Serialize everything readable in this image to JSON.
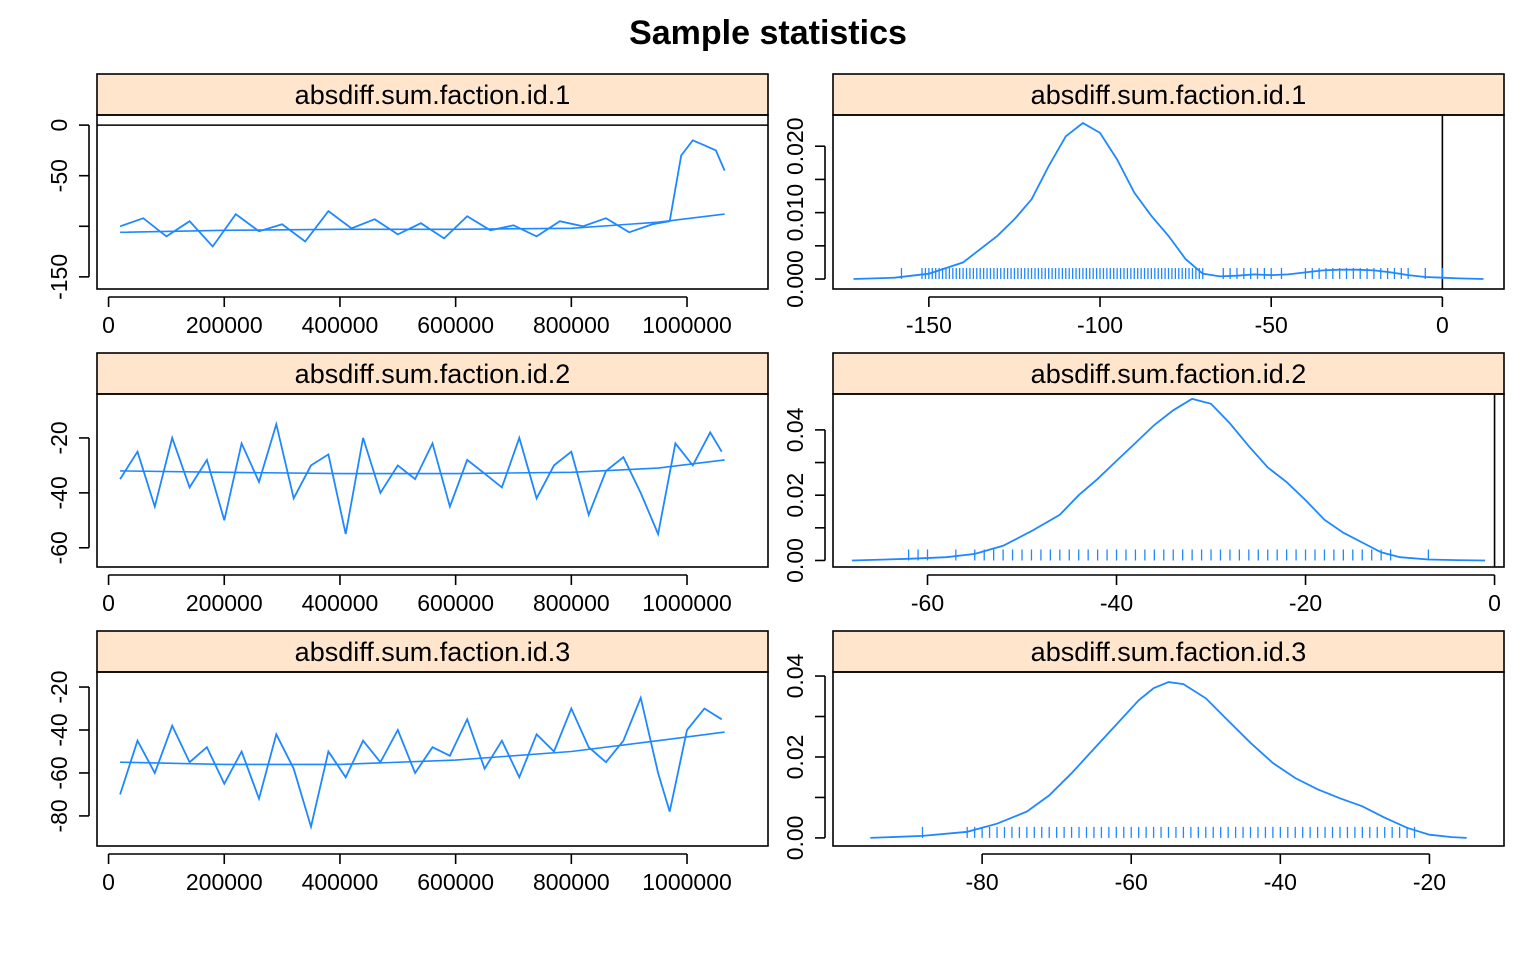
{
  "title": "Sample statistics",
  "colors": {
    "line": "#1e88ff",
    "strip": "#ffe5cc",
    "axis": "#000000"
  },
  "chart_data": [
    {
      "type": "line",
      "panel": "trace",
      "strip_label": "absdiff.sum.faction.id.1",
      "xlim": [
        -20000,
        1140000
      ],
      "ylim": [
        -162,
        10
      ],
      "x_ticks": [
        0,
        200000,
        400000,
        600000,
        800000,
        1000000
      ],
      "y_ticks": [
        0,
        -50,
        -100,
        -150
      ],
      "y_tick_labels": [
        "0",
        "-50",
        "",
        "-150"
      ],
      "reference_y": 0,
      "series": [
        {
          "x": [
            20000,
            60000,
            100000,
            140000,
            180000,
            220000,
            260000,
            300000,
            340000,
            380000,
            420000,
            460000,
            500000,
            540000,
            580000,
            620000,
            660000,
            700000,
            740000,
            780000,
            820000,
            860000,
            900000,
            940000,
            970000,
            990000,
            1010000,
            1030000,
            1050000,
            1065000
          ],
          "y": [
            -100,
            -92,
            -110,
            -95,
            -120,
            -88,
            -105,
            -98,
            -115,
            -85,
            -102,
            -93,
            -108,
            -97,
            -112,
            -90,
            -104,
            -99,
            -110,
            -95,
            -100,
            -92,
            -106,
            -98,
            -95,
            -30,
            -15,
            -20,
            -25,
            -45
          ]
        }
      ],
      "smooth": {
        "x": [
          20000,
          200000,
          400000,
          600000,
          800000,
          950000,
          1065000
        ],
        "y": [
          -106,
          -104,
          -103,
          -103,
          -102,
          -96,
          -88
        ]
      }
    },
    {
      "type": "area",
      "panel": "density",
      "strip_label": "absdiff.sum.faction.id.1",
      "xlim": [
        -178,
        18
      ],
      "ylim": [
        -0.0015,
        0.0247
      ],
      "x_ticks": [
        -150,
        -100,
        -50,
        0
      ],
      "y_ticks": [
        0.0,
        0.005,
        0.01,
        0.015,
        0.02
      ],
      "y_tick_labels": [
        "0.000",
        "",
        "0.010",
        "",
        "0.020"
      ],
      "reference_x": 0,
      "series": [
        {
          "x": [
            -172,
            -160,
            -150,
            -140,
            -130,
            -125,
            -120,
            -115,
            -110,
            -105,
            -100,
            -95,
            -90,
            -85,
            -80,
            -75,
            -70,
            -65,
            -60,
            -55,
            -50,
            -45,
            -40,
            -35,
            -30,
            -25,
            -20,
            -15,
            -10,
            -5,
            0,
            5,
            12
          ],
          "y": [
            0.0,
            0.0002,
            0.0008,
            0.0025,
            0.0065,
            0.009,
            0.012,
            0.017,
            0.0215,
            0.0235,
            0.022,
            0.018,
            0.013,
            0.0095,
            0.0065,
            0.003,
            0.0008,
            0.0004,
            0.0005,
            0.0007,
            0.0006,
            0.0007,
            0.001,
            0.0013,
            0.0014,
            0.0014,
            0.0013,
            0.001,
            0.0006,
            0.0003,
            0.0002,
            0.0001,
            0.0
          ]
        }
      ],
      "rug": [
        -158,
        -152,
        -151,
        -150,
        -149,
        -148,
        -147,
        -146,
        -145,
        -144,
        -143,
        -142,
        -141,
        -140,
        -139,
        -138,
        -137,
        -136,
        -135,
        -134,
        -133,
        -132,
        -131,
        -130,
        -129,
        -128,
        -127,
        -126,
        -125,
        -124,
        -123,
        -122,
        -121,
        -120,
        -119,
        -118,
        -117,
        -116,
        -115,
        -114,
        -113,
        -112,
        -111,
        -110,
        -109,
        -108,
        -107,
        -106,
        -105,
        -104,
        -103,
        -102,
        -101,
        -100,
        -99,
        -98,
        -97,
        -96,
        -95,
        -94,
        -93,
        -92,
        -91,
        -90,
        -89,
        -88,
        -87,
        -86,
        -85,
        -84,
        -83,
        -82,
        -81,
        -80,
        -79,
        -78,
        -77,
        -76,
        -75,
        -74,
        -73,
        -72,
        -71,
        -70,
        -64,
        -62,
        -60,
        -58,
        -56,
        -54,
        -52,
        -50,
        -47,
        -40,
        -38,
        -36,
        -34,
        -32,
        -30,
        -28,
        -26,
        -24,
        -22,
        -20,
        -18,
        -16,
        -14,
        -12,
        -10,
        -5,
        0
      ]
    },
    {
      "type": "line",
      "panel": "trace",
      "strip_label": "absdiff.sum.faction.id.2",
      "xlim": [
        -20000,
        1140000
      ],
      "ylim": [
        -67,
        -4
      ],
      "x_ticks": [
        0,
        200000,
        400000,
        600000,
        800000,
        1000000
      ],
      "y_ticks": [
        -20,
        -40,
        -60
      ],
      "y_tick_labels": [
        "-20",
        "-40",
        "-60"
      ],
      "series": [
        {
          "x": [
            20000,
            50000,
            80000,
            110000,
            140000,
            170000,
            200000,
            230000,
            260000,
            290000,
            320000,
            350000,
            380000,
            410000,
            440000,
            470000,
            500000,
            530000,
            560000,
            590000,
            620000,
            650000,
            680000,
            710000,
            740000,
            770000,
            800000,
            830000,
            860000,
            890000,
            920000,
            950000,
            980000,
            1010000,
            1040000,
            1060000
          ],
          "y": [
            -35,
            -25,
            -45,
            -20,
            -38,
            -28,
            -50,
            -22,
            -36,
            -15,
            -42,
            -30,
            -26,
            -55,
            -20,
            -40,
            -30,
            -35,
            -22,
            -45,
            -28,
            -33,
            -38,
            -20,
            -42,
            -30,
            -25,
            -48,
            -32,
            -27,
            -40,
            -55,
            -22,
            -30,
            -18,
            -25
          ]
        }
      ],
      "smooth": {
        "x": [
          20000,
          200000,
          400000,
          600000,
          800000,
          950000,
          1065000
        ],
        "y": [
          -32,
          -32.5,
          -33,
          -33,
          -32.5,
          -31,
          -28
        ]
      }
    },
    {
      "type": "area",
      "panel": "density",
      "strip_label": "absdiff.sum.faction.id.2",
      "xlim": [
        -70,
        1
      ],
      "ylim": [
        -0.002,
        0.051
      ],
      "x_ticks": [
        -60,
        -40,
        -20,
        0
      ],
      "y_ticks": [
        0.0,
        0.01,
        0.02,
        0.03,
        0.04
      ],
      "y_tick_labels": [
        "0.00",
        "",
        "0.02",
        "",
        "0.04"
      ],
      "reference_x": 0,
      "series": [
        {
          "x": [
            -68,
            -62,
            -58,
            -55,
            -52,
            -49,
            -46,
            -44,
            -42,
            -40,
            -38,
            -36,
            -34,
            -32,
            -30,
            -28,
            -26,
            -24,
            -22,
            -20,
            -18,
            -16,
            -14,
            -12,
            -10,
            -7,
            -4,
            -1
          ],
          "y": [
            0.0,
            0.0005,
            0.001,
            0.002,
            0.0045,
            0.009,
            0.014,
            0.02,
            0.025,
            0.0305,
            0.036,
            0.0415,
            0.046,
            0.0495,
            0.048,
            0.042,
            0.035,
            0.0285,
            0.024,
            0.0185,
            0.0125,
            0.0085,
            0.0055,
            0.0025,
            0.001,
            0.0003,
            0.0001,
            0.0
          ]
        }
      ],
      "rug": [
        -62,
        -61,
        -60,
        -57,
        -55,
        -54,
        -53,
        -52,
        -51,
        -50,
        -49,
        -48,
        -47,
        -46,
        -45,
        -44,
        -43,
        -42,
        -41,
        -40,
        -39,
        -38,
        -37,
        -36,
        -35,
        -34,
        -33,
        -32,
        -31,
        -30,
        -29,
        -28,
        -27,
        -26,
        -25,
        -24,
        -23,
        -22,
        -21,
        -20,
        -19,
        -18,
        -17,
        -16,
        -15,
        -14,
        -13,
        -12,
        -11,
        -7
      ]
    },
    {
      "type": "line",
      "panel": "trace",
      "strip_label": "absdiff.sum.faction.id.3",
      "xlim": [
        -20000,
        1140000
      ],
      "ylim": [
        -94,
        -13
      ],
      "x_ticks": [
        0,
        200000,
        400000,
        600000,
        800000,
        1000000
      ],
      "y_ticks": [
        -20,
        -40,
        -60,
        -80
      ],
      "y_tick_labels": [
        "-20",
        "-40",
        "-60",
        "-80"
      ],
      "series": [
        {
          "x": [
            20000,
            50000,
            80000,
            110000,
            140000,
            170000,
            200000,
            230000,
            260000,
            290000,
            320000,
            350000,
            380000,
            410000,
            440000,
            470000,
            500000,
            530000,
            560000,
            590000,
            620000,
            650000,
            680000,
            710000,
            740000,
            770000,
            800000,
            830000,
            860000,
            890000,
            920000,
            950000,
            970000,
            1000000,
            1030000,
            1060000
          ],
          "y": [
            -70,
            -45,
            -60,
            -38,
            -55,
            -48,
            -65,
            -50,
            -72,
            -42,
            -58,
            -85,
            -50,
            -62,
            -45,
            -55,
            -40,
            -60,
            -48,
            -52,
            -35,
            -58,
            -45,
            -62,
            -42,
            -50,
            -30,
            -48,
            -55,
            -45,
            -25,
            -60,
            -78,
            -40,
            -30,
            -35
          ]
        }
      ],
      "smooth": {
        "x": [
          20000,
          200000,
          400000,
          600000,
          800000,
          950000,
          1065000
        ],
        "y": [
          -55,
          -56,
          -56,
          -54,
          -50,
          -45,
          -41
        ]
      }
    },
    {
      "type": "area",
      "panel": "density",
      "strip_label": "absdiff.sum.faction.id.3",
      "xlim": [
        -100,
        -10
      ],
      "ylim": [
        -0.002,
        0.041
      ],
      "x_ticks": [
        -80,
        -60,
        -40,
        -20
      ],
      "y_ticks": [
        0.0,
        0.01,
        0.02,
        0.03,
        0.04
      ],
      "y_tick_labels": [
        "0.00",
        "",
        "0.02",
        "",
        "0.04"
      ],
      "series": [
        {
          "x": [
            -95,
            -88,
            -82,
            -78,
            -74,
            -71,
            -68,
            -65,
            -62,
            -59,
            -57,
            -55,
            -53,
            -50,
            -47,
            -44,
            -41,
            -38,
            -35,
            -32,
            -29,
            -26,
            -23,
            -20,
            -17,
            -15
          ],
          "y": [
            0.0,
            0.0005,
            0.0015,
            0.0035,
            0.0065,
            0.0105,
            0.016,
            0.022,
            0.028,
            0.034,
            0.037,
            0.0385,
            0.038,
            0.0345,
            0.029,
            0.0235,
            0.0185,
            0.0148,
            0.012,
            0.0098,
            0.0078,
            0.005,
            0.0025,
            0.0008,
            0.0002,
            0.0
          ]
        }
      ],
      "rug": [
        -88,
        -82,
        -81,
        -80,
        -79,
        -78,
        -77,
        -76,
        -75,
        -74,
        -73,
        -72,
        -71,
        -70,
        -69,
        -68,
        -67,
        -66,
        -65,
        -64,
        -63,
        -62,
        -61,
        -60,
        -59,
        -58,
        -57,
        -56,
        -55,
        -54,
        -53,
        -52,
        -51,
        -50,
        -49,
        -48,
        -47,
        -46,
        -45,
        -44,
        -43,
        -42,
        -41,
        -40,
        -39,
        -38,
        -37,
        -36,
        -35,
        -34,
        -33,
        -32,
        -31,
        -30,
        -29,
        -28,
        -27,
        -26,
        -25,
        -24,
        -23,
        -22
      ]
    }
  ]
}
